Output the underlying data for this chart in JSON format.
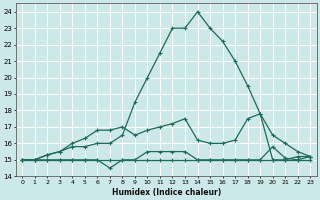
{
  "xlabel": "Humidex (Indice chaleur)",
  "xlim_min": -0.5,
  "xlim_max": 23.5,
  "ylim_min": 14,
  "ylim_max": 24.5,
  "xticks": [
    0,
    1,
    2,
    3,
    4,
    5,
    6,
    7,
    8,
    9,
    10,
    11,
    12,
    13,
    14,
    15,
    16,
    17,
    18,
    19,
    20,
    21,
    22,
    23
  ],
  "yticks": [
    14,
    15,
    16,
    17,
    18,
    19,
    20,
    21,
    22,
    23,
    24
  ],
  "bg_color": "#cce8e8",
  "line_color": "#1e6b5a",
  "grid_color": "#ffffff",
  "series": [
    [
      15.0,
      15.0,
      15.0,
      15.0,
      15.0,
      15.0,
      15.0,
      15.0,
      15.0,
      15.0,
      15.0,
      15.0,
      15.0,
      15.0,
      15.0,
      15.0,
      15.0,
      15.0,
      15.0,
      15.0,
      15.0,
      15.0,
      15.0,
      15.0
    ],
    [
      15.0,
      15.0,
      15.0,
      15.0,
      15.0,
      15.0,
      15.0,
      14.5,
      15.0,
      15.0,
      15.5,
      15.5,
      15.5,
      15.5,
      15.0,
      15.0,
      15.0,
      15.0,
      15.0,
      15.0,
      15.8,
      15.1,
      15.0,
      15.2
    ],
    [
      15.0,
      15.0,
      15.3,
      15.5,
      16.0,
      16.3,
      16.8,
      16.8,
      17.0,
      16.5,
      16.8,
      17.0,
      17.2,
      17.5,
      16.2,
      16.0,
      16.0,
      16.2,
      17.5,
      17.8,
      16.5,
      16.0,
      15.5,
      15.2
    ],
    [
      15.0,
      15.0,
      15.3,
      15.5,
      15.8,
      15.8,
      16.0,
      16.0,
      16.5,
      18.5,
      20.0,
      21.5,
      23.0,
      23.0,
      24.0,
      23.0,
      22.2,
      21.0,
      19.5,
      17.8,
      15.0,
      15.0,
      15.2,
      15.2
    ]
  ]
}
